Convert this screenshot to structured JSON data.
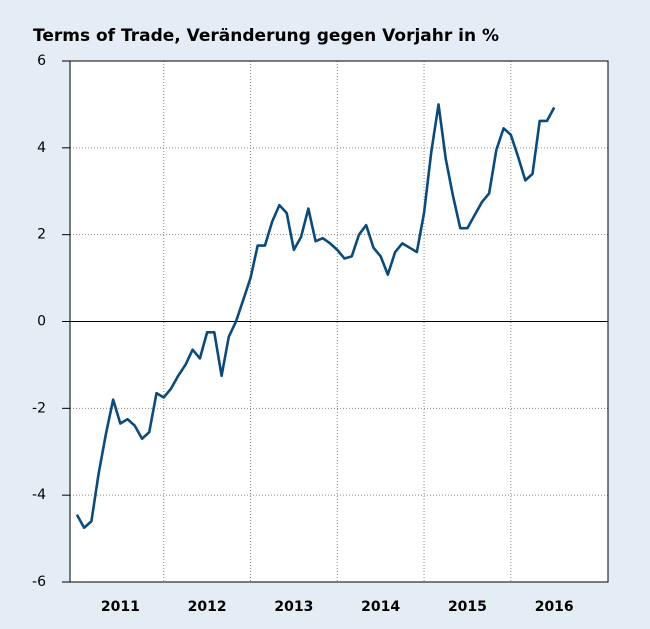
{
  "chart_data": {
    "type": "line",
    "title": "Terms of Trade, Veränderung gegen Vorjahr in %",
    "x": [
      2011,
      2011.083,
      2011.167,
      2011.25,
      2011.333,
      2011.417,
      2011.5,
      2011.583,
      2011.667,
      2011.75,
      2011.833,
      2011.917,
      2012,
      2012.083,
      2012.167,
      2012.25,
      2012.333,
      2012.417,
      2012.5,
      2012.583,
      2012.667,
      2012.75,
      2012.833,
      2012.917,
      2013,
      2013.083,
      2013.167,
      2013.25,
      2013.333,
      2013.417,
      2013.5,
      2013.583,
      2013.667,
      2013.75,
      2013.833,
      2013.917,
      2014,
      2014.083,
      2014.167,
      2014.25,
      2014.333,
      2014.417,
      2014.5,
      2014.583,
      2014.667,
      2014.75,
      2014.833,
      2014.917,
      2015,
      2015.083,
      2015.167,
      2015.25,
      2015.333,
      2015.417,
      2015.5,
      2015.583,
      2015.667,
      2015.75,
      2015.833,
      2015.917,
      2016,
      2016.083,
      2016.167,
      2016.25,
      2016.333,
      2016.417,
      2016.5
    ],
    "series": [
      {
        "color": "#0b4a7a",
        "values": [
          -4.45,
          -4.75,
          -4.6,
          -3.5,
          -2.6,
          -1.8,
          -2.35,
          -2.25,
          -2.4,
          -2.7,
          -2.55,
          -1.65,
          -1.75,
          -1.55,
          -1.25,
          -1.0,
          -0.65,
          -0.85,
          -0.25,
          -0.25,
          -1.25,
          -0.35,
          0.0,
          0.5,
          1.0,
          1.75,
          1.75,
          2.3,
          2.68,
          2.5,
          1.65,
          1.95,
          2.6,
          1.85,
          1.92,
          1.8,
          1.65,
          1.45,
          1.5,
          2.0,
          2.22,
          1.7,
          1.5,
          1.08,
          1.6,
          1.8,
          1.7,
          1.6,
          2.5,
          3.9,
          5.0,
          3.75,
          2.9,
          2.15,
          2.15,
          2.45,
          2.75,
          2.95,
          3.95,
          4.45,
          4.3,
          3.8,
          3.25,
          3.4,
          4.62,
          4.62,
          4.93
        ]
      }
    ],
    "xlim": [
      2010.92,
      2017.12
    ],
    "xticks": [
      {
        "value": 2011.5,
        "label": "2011"
      },
      {
        "value": 2012.5,
        "label": "2012"
      },
      {
        "value": 2013.5,
        "label": "2013"
      },
      {
        "value": 2014.5,
        "label": "2014"
      },
      {
        "value": 2015.5,
        "label": "2015"
      },
      {
        "value": 2016.5,
        "label": "2016"
      }
    ],
    "ylim": [
      -6,
      6
    ],
    "yticks": [
      -6,
      -4,
      -2,
      0,
      2,
      4,
      6
    ],
    "grid": true
  }
}
